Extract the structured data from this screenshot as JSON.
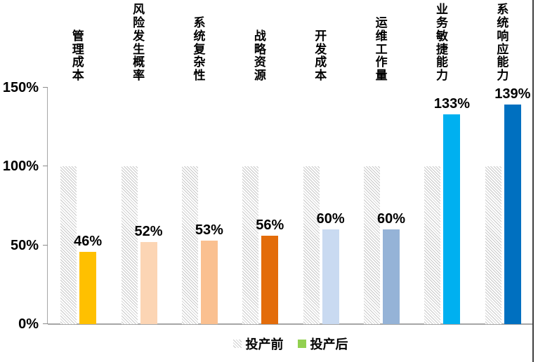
{
  "chart_data": {
    "type": "bar",
    "title": "",
    "categories": [
      "管理成本",
      "风险发生概率",
      "系统复杂性",
      "战略资源",
      "开发成本",
      "运维工作量",
      "业务敏捷能力",
      "系统响应能力"
    ],
    "series": [
      {
        "name": "投产前",
        "values": [
          100,
          100,
          100,
          100,
          100,
          100,
          100,
          100
        ],
        "fill": "hatched-gray",
        "show_value_labels": false
      },
      {
        "name": "投产后",
        "values": [
          46,
          52,
          53,
          56,
          60,
          60,
          133,
          139
        ],
        "value_labels": [
          "46%",
          "52%",
          "53%",
          "56%",
          "60%",
          "60%",
          "133%",
          "139%"
        ],
        "bar_colors": [
          "#FFC000",
          "#FCD5B4",
          "#FAC090",
          "#E36C0A",
          "#C9DAF1",
          "#95B3D7",
          "#00B0F0",
          "#0070C0"
        ],
        "show_value_labels": true
      }
    ],
    "y_axis": {
      "ticks": [
        "0%",
        "50%",
        "100%",
        "150%"
      ],
      "tick_values": [
        0,
        50,
        100,
        150
      ],
      "ylim": [
        0,
        150
      ]
    },
    "x_axis": {
      "label": ""
    },
    "legend": {
      "position": "bottom",
      "items": [
        {
          "label": "投产前",
          "swatch": "hatched-gray"
        },
        {
          "label": "投产后",
          "swatch_color": "#92D050"
        }
      ]
    },
    "layout_hints": {
      "grid": "off",
      "category_labels_rotated_vertical": true
    },
    "colors": {
      "hatch_line": "#C9C9C9",
      "axis": "#A6A6A6",
      "tick": "#8C8C8C",
      "text": "#000000",
      "right_border": "#3F3F3F"
    }
  }
}
